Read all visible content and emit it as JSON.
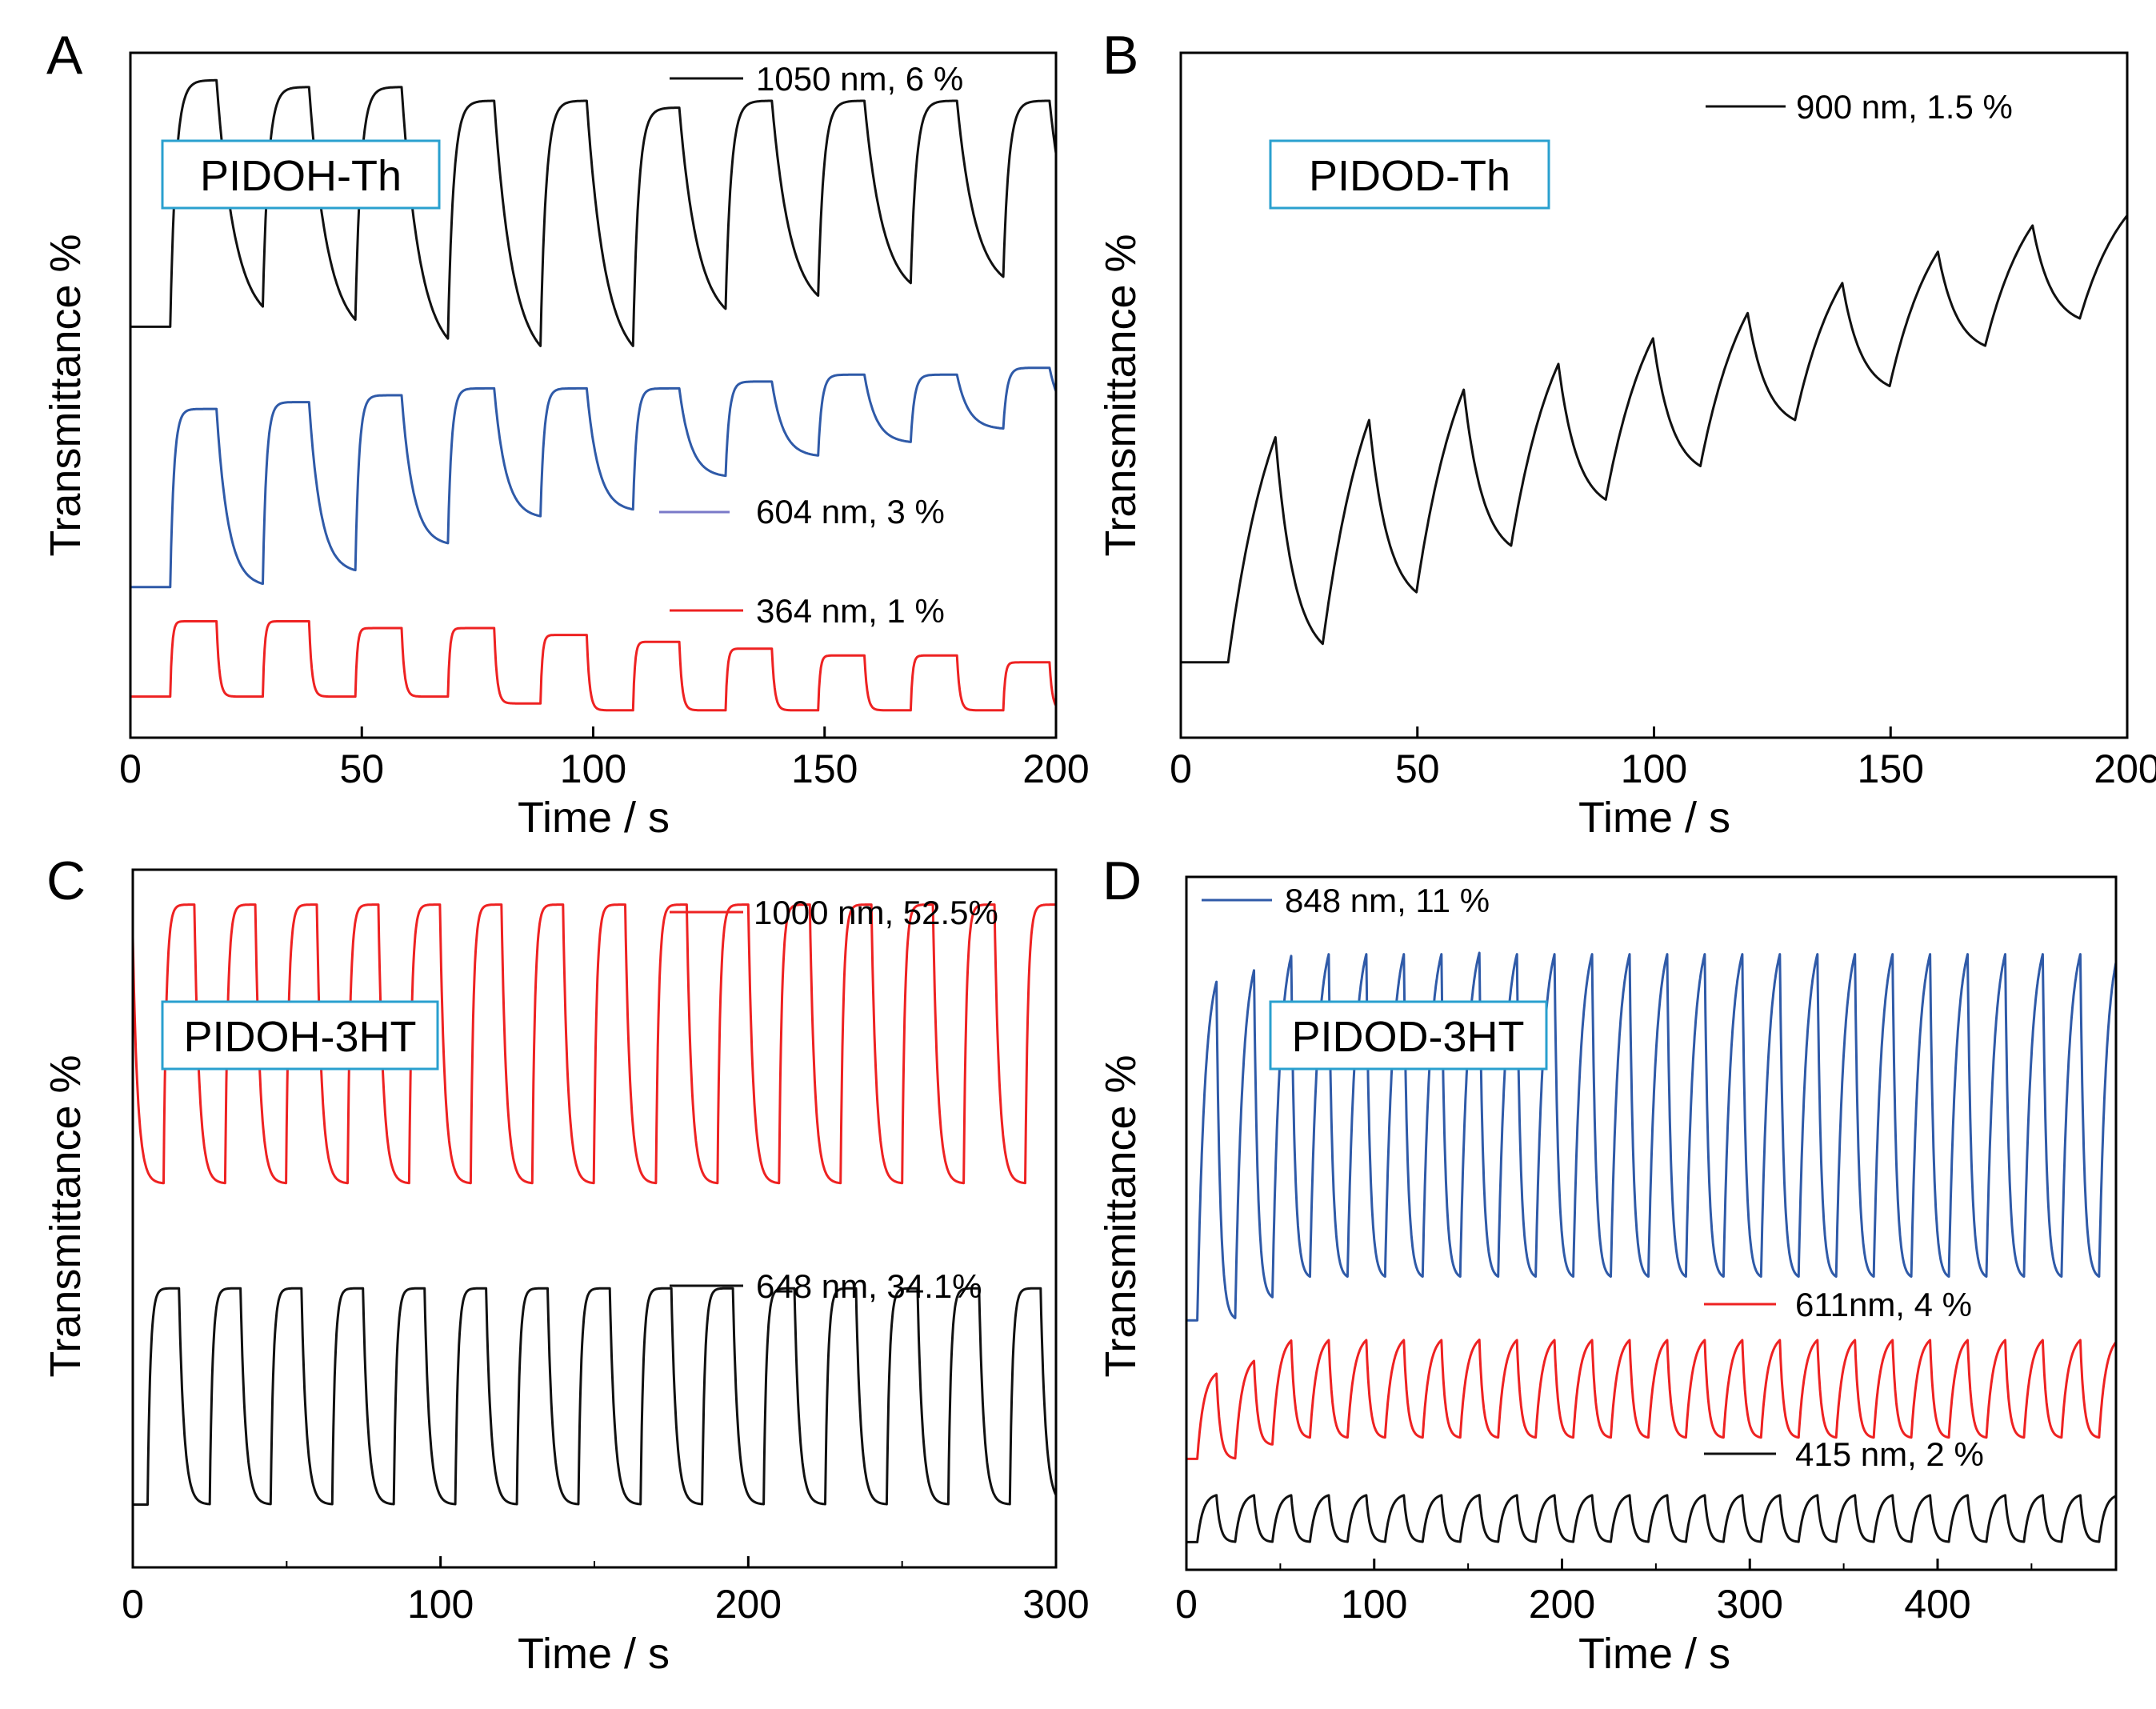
{
  "colors": {
    "black": "#111111",
    "blue": "#2f5aa8",
    "red": "#ee2222",
    "legend_blue": "#7a79c8",
    "sample_box_border": "#2aa0cf",
    "axis": "#000000"
  },
  "chart_data": [
    {
      "panel_letter": "A",
      "type": "line",
      "sample_label": "PIDOH-Th",
      "xlabel": "Time / s",
      "ylabel": "Transmittance %",
      "xlim": [
        0,
        200
      ],
      "ylim": [
        0,
        100
      ],
      "xticks": [
        0,
        50,
        100,
        150,
        200
      ],
      "xtick_labels": [
        "0",
        "50",
        "100",
        "150",
        "200"
      ],
      "minor_xticks": [],
      "y_tick_labels_shown": false,
      "series": [
        {
          "name": "1050 nm, 6 %",
          "color": "#111111",
          "period": 20,
          "step_start": 8.7,
          "amplitude_low": [
            60,
            58,
            55,
            54,
            54,
            60,
            62,
            64,
            65,
            67,
            69
          ],
          "amplitude_high": [
            96,
            95,
            95,
            93,
            93,
            92,
            93,
            93,
            93,
            93,
            94
          ],
          "tau_rise": 1.2,
          "tau_fall": 4.0
        },
        {
          "name": "604 nm, 3 %",
          "color": "#2f5aa8",
          "period": 20,
          "step_start": 8.7,
          "amplitude_low": [
            22,
            24,
            28,
            32,
            33,
            38,
            41,
            43,
            45,
            46,
            48
          ],
          "amplitude_high": [
            48,
            49,
            50,
            51,
            51,
            51,
            52,
            53,
            53,
            54,
            55
          ],
          "tau_rise": 0.8,
          "tau_fall": 2.5
        },
        {
          "name": "364 nm, 1 %",
          "color": "#ee2222",
          "period": 20,
          "step_start": 8.7,
          "amplitude_low": [
            6,
            6,
            6,
            5,
            4,
            4,
            4,
            4,
            4,
            4,
            4
          ],
          "amplitude_high": [
            17,
            17,
            16,
            16,
            15,
            14,
            13,
            12,
            12,
            11,
            10
          ],
          "tau_rise": 0.4,
          "tau_fall": 0.6
        }
      ]
    },
    {
      "panel_letter": "B",
      "type": "line",
      "sample_label": "PIDOD-Th",
      "xlabel": "Time / s",
      "ylabel": "Transmittance %",
      "xlim": [
        0,
        200
      ],
      "ylim": [
        0,
        100
      ],
      "xticks": [
        0,
        50,
        100,
        150,
        200
      ],
      "xtick_labels": [
        "0",
        "50",
        "100",
        "150",
        "200"
      ],
      "minor_xticks": [],
      "y_tick_labels_shown": false,
      "series": [
        {
          "name": "900 nm, 1.5 %",
          "color": "#111111",
          "period": 20,
          "step_start": 10,
          "amplitude_low": [
            11,
            19,
            26,
            33,
            38,
            45,
            50,
            56,
            60,
            65
          ],
          "amplitude_high": [
            63,
            66,
            68,
            70,
            72,
            75,
            78,
            82,
            85,
            85
          ],
          "tau_rise": 10,
          "tau_fall": 4.0
        }
      ]
    },
    {
      "panel_letter": "C",
      "type": "line",
      "sample_label": "PIDOH-3HT",
      "xlabel": "Time / s",
      "ylabel": "Transmittance %",
      "xlim": [
        0,
        300
      ],
      "ylim": [
        0,
        100
      ],
      "xticks": [
        0,
        100,
        200,
        300
      ],
      "xtick_labels": [
        "0",
        "100",
        "200",
        "300"
      ],
      "minor_xticks": [
        50,
        150,
        250
      ],
      "y_tick_labels_shown": false,
      "series": [
        {
          "name": "1000 nm, 52.5%",
          "color": "#ee2222",
          "period": 20,
          "step_start": 0,
          "first_down": true,
          "amplitude_low": [
            55
          ],
          "amplitude_high": [
            95
          ],
          "tau_rise": 0.9,
          "tau_fall": 1.6
        },
        {
          "name": "648 nm, 34.1%",
          "color": "#111111",
          "period": 20,
          "step_start": 5,
          "amplitude_low": [
            9
          ],
          "amplitude_high": [
            40
          ],
          "tau_rise": 0.9,
          "tau_fall": 1.6
        }
      ]
    },
    {
      "panel_letter": "D",
      "type": "line",
      "sample_label": "PIDOD-3HT",
      "xlabel": "Time / s",
      "ylabel": "Transmittance %",
      "xlim": [
        0,
        495
      ],
      "ylim": [
        0,
        100
      ],
      "xticks": [
        0,
        100,
        200,
        300,
        400
      ],
      "xtick_labels": [
        "0",
        "100",
        "200",
        "300",
        "400"
      ],
      "minor_xticks": [
        50,
        150,
        250,
        350,
        450
      ],
      "y_tick_labels_shown": false,
      "series": [
        {
          "name": "848 nm, 11 %",
          "color": "#2f5aa8",
          "period": 20,
          "step_start": 6,
          "amplitude_low": [
            36,
            39,
            42
          ],
          "amplitude_high": [
            89,
            91,
            93
          ],
          "tau_rise": 4.0,
          "tau_fall": 2.0
        },
        {
          "name": "611nm, 4 %",
          "color": "#ee2222",
          "period": 20,
          "step_start": 6,
          "amplitude_low": [
            16,
            18,
            19
          ],
          "amplitude_high": [
            29,
            31,
            34
          ],
          "tau_rise": 3.5,
          "tau_fall": 2.0
        },
        {
          "name": "415 nm, 2 %",
          "color": "#111111",
          "period": 20,
          "step_start": 6,
          "amplitude_low": [
            4,
            4,
            4
          ],
          "amplitude_high": [
            11,
            11,
            11
          ],
          "tau_rise": 3.0,
          "tau_fall": 2.0
        }
      ]
    }
  ]
}
